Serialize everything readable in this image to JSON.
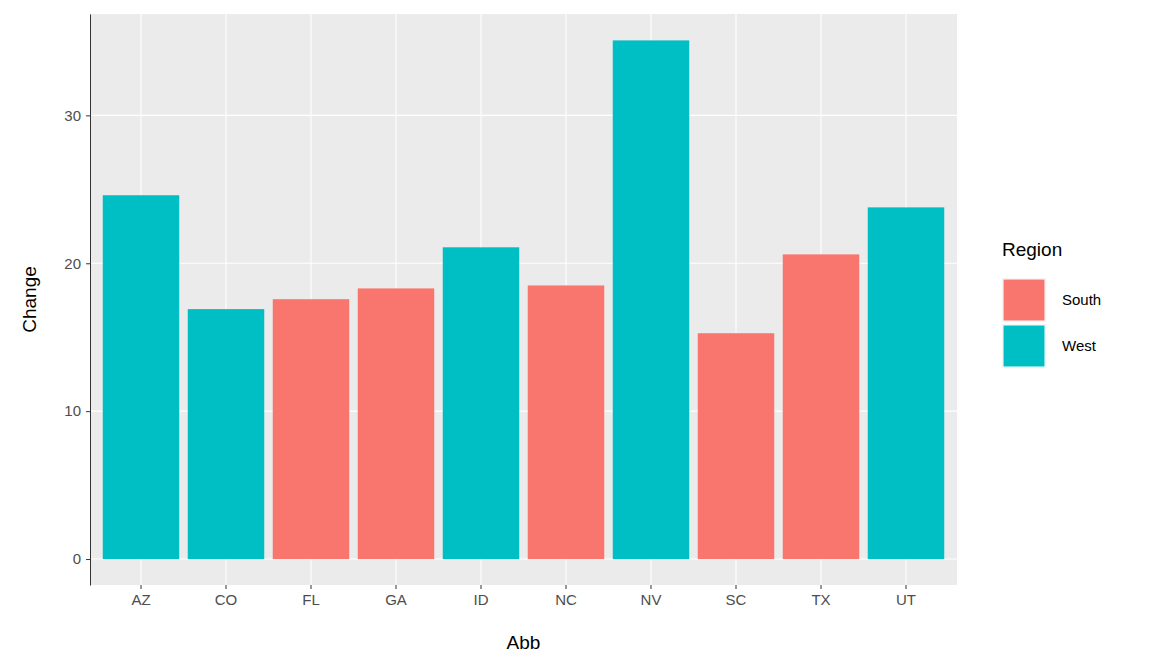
{
  "chart_data": {
    "type": "bar",
    "x_label": "Abb",
    "y_label": "Change",
    "legend_title": "Region",
    "categories": [
      "AZ",
      "CO",
      "FL",
      "GA",
      "ID",
      "NC",
      "NV",
      "SC",
      "TX",
      "UT"
    ],
    "series": [
      {
        "name": "South",
        "color": "#F8766D",
        "values": [
          null,
          null,
          17.57,
          18.3,
          null,
          18.5,
          null,
          15.27,
          20.6,
          null
        ]
      },
      {
        "name": "West",
        "color": "#00BFC4",
        "values": [
          24.6,
          16.9,
          null,
          null,
          21.08,
          null,
          35.07,
          null,
          null,
          23.78
        ]
      }
    ],
    "ylim": [
      -1.755,
      36.855
    ],
    "yticks": [
      0,
      10,
      20,
      30
    ],
    "grid": true,
    "legend": "right"
  }
}
